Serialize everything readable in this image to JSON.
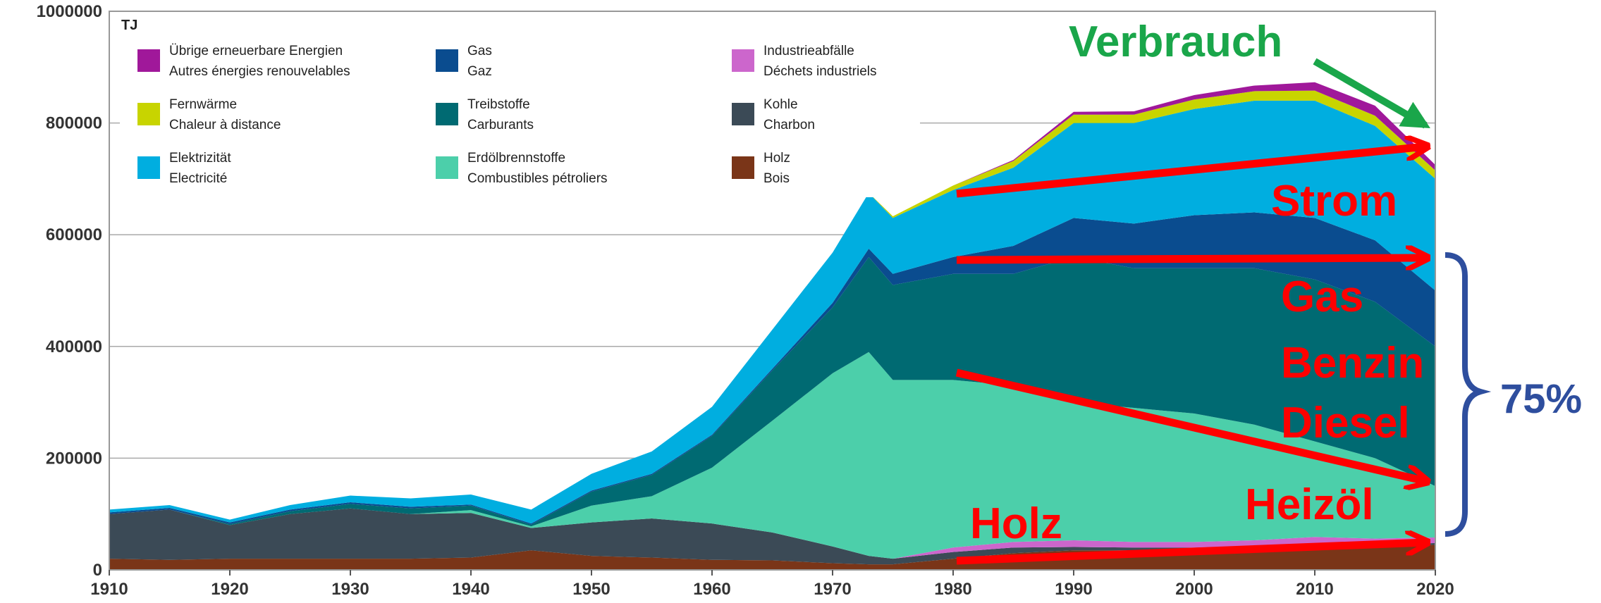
{
  "chart_data": {
    "type": "stacked_area",
    "unit_label": "TJ",
    "x": [
      1910,
      1915,
      1920,
      1925,
      1930,
      1935,
      1940,
      1945,
      1950,
      1955,
      1960,
      1965,
      1970,
      1973,
      1975,
      1980,
      1985,
      1990,
      1995,
      2000,
      2005,
      2010,
      2015,
      2020
    ],
    "series": [
      {
        "name": [
          "Holz",
          "Bois"
        ],
        "color": "#7a3518",
        "values": [
          20000,
          18000,
          20000,
          20000,
          20000,
          20000,
          22000,
          35000,
          25000,
          22000,
          18000,
          17000,
          12000,
          10000,
          10000,
          20000,
          30000,
          35000,
          35000,
          35000,
          38000,
          42000,
          40000,
          45000
        ]
      },
      {
        "name": [
          "Kohle",
          "Charbon"
        ],
        "color": "#3b4a56",
        "values": [
          80000,
          90000,
          60000,
          80000,
          90000,
          80000,
          80000,
          40000,
          60000,
          70000,
          65000,
          50000,
          30000,
          15000,
          10000,
          12000,
          10000,
          6000,
          5000,
          5000,
          5000,
          5000,
          4000,
          3000
        ]
      },
      {
        "name": [
          "Industrieabfälle",
          "Déchets industriels"
        ],
        "color": "#cc66cc",
        "values": [
          0,
          0,
          0,
          0,
          0,
          0,
          0,
          0,
          0,
          0,
          0,
          0,
          0,
          0,
          0,
          8000,
          10000,
          12000,
          10000,
          10000,
          10000,
          12000,
          12000,
          10000
        ]
      },
      {
        "name": [
          "Erdölbrennstoffe",
          "Combustibles pétroliers"
        ],
        "color": "#4ccfaa",
        "values": [
          0,
          0,
          0,
          0,
          0,
          0,
          5000,
          3000,
          30000,
          40000,
          100000,
          200000,
          310000,
          365000,
          320000,
          300000,
          280000,
          247000,
          240000,
          230000,
          207000,
          171000,
          144000,
          92000
        ]
      },
      {
        "name": [
          "Treibstoffe",
          "Carburants"
        ],
        "color": "#006a72",
        "values": [
          0,
          0,
          2000,
          5000,
          8000,
          10000,
          8000,
          3000,
          25000,
          38000,
          57000,
          90000,
          118000,
          170000,
          170000,
          190000,
          200000,
          260000,
          250000,
          260000,
          280000,
          290000,
          280000,
          250000
        ]
      },
      {
        "name": [
          "Gas",
          "Gaz"
        ],
        "color": "#0a4c8f",
        "values": [
          3000,
          3000,
          3000,
          3000,
          3000,
          3000,
          2000,
          2000,
          2000,
          2000,
          2000,
          3000,
          8000,
          15000,
          20000,
          30000,
          50000,
          70000,
          80000,
          95000,
          100000,
          110000,
          110000,
          100000
        ]
      },
      {
        "name": [
          "Elektrizität",
          "Electricité"
        ],
        "color": "#00aee0",
        "values": [
          5000,
          5000,
          5000,
          8000,
          12000,
          15000,
          18000,
          25000,
          30000,
          40000,
          50000,
          70000,
          90000,
          100000,
          100000,
          120000,
          140000,
          170000,
          180000,
          190000,
          200000,
          210000,
          205000,
          200000
        ]
      },
      {
        "name": [
          "Fernwärme",
          "Chaleur à distance"
        ],
        "color": "#c8d400",
        "values": [
          0,
          0,
          0,
          0,
          0,
          0,
          0,
          0,
          0,
          0,
          0,
          0,
          0,
          0,
          3000,
          8000,
          12000,
          15000,
          15000,
          17000,
          17000,
          18000,
          18000,
          15000
        ]
      },
      {
        "name": [
          "Übrige erneuerbare Energien",
          "Autres énergies renouvelables"
        ],
        "color": "#a0189a",
        "values": [
          0,
          0,
          0,
          0,
          0,
          0,
          0,
          0,
          0,
          0,
          0,
          0,
          0,
          0,
          0,
          0,
          2000,
          5000,
          6000,
          8000,
          10000,
          15000,
          18000,
          10000
        ]
      }
    ],
    "xlim": [
      1910,
      2020
    ],
    "ylim": [
      0,
      1000000
    ],
    "xticks": [
      1910,
      1920,
      1930,
      1940,
      1950,
      1960,
      1970,
      1980,
      1990,
      2000,
      2010,
      2020
    ],
    "yticks": [
      0,
      200000,
      400000,
      600000,
      800000,
      1000000
    ],
    "grid": true,
    "annotations": [
      "Verbrauch",
      "Strom",
      "Gas",
      "Benzin",
      "Diesel",
      "Heizöl",
      "Holz",
      "75%"
    ]
  }
}
